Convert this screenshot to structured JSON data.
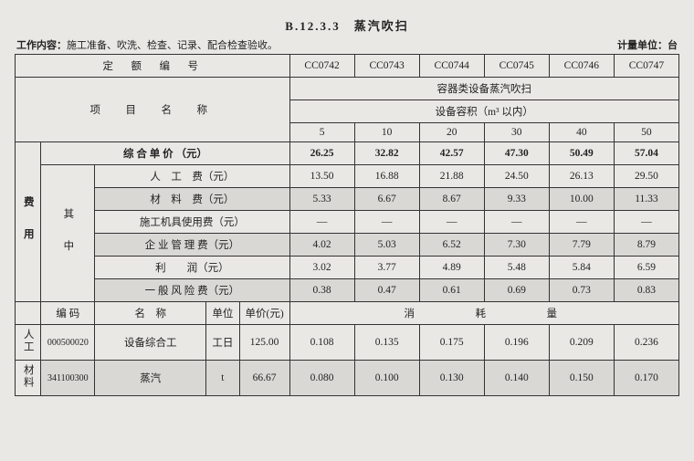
{
  "title": "B.12.3.3　蒸汽吹扫",
  "work_content_label": "工作内容：",
  "work_content": "施工准备、吹洗、检查、记录、配合检查验收。",
  "unit_label": "计量单位：台",
  "quota_label": "定　额　编　号",
  "item_label": "项　目　名　称",
  "group_title": "容器类设备蒸汽吹扫",
  "subgroup_title": "设备容积（m³ 以内）",
  "codes": [
    "CC0742",
    "CC0743",
    "CC0744",
    "CC0745",
    "CC0746",
    "CC0747"
  ],
  "caps": [
    "5",
    "10",
    "20",
    "30",
    "40",
    "50"
  ],
  "price_row_label": "综 合 单 价 （元）",
  "prices": [
    "26.25",
    "32.82",
    "42.57",
    "47.30",
    "50.49",
    "57.04"
  ],
  "fee_side": "费　用",
  "fee_sub": "其　中",
  "fee_rows": [
    {
      "label": "人　工　费（元）",
      "v": [
        "13.50",
        "16.88",
        "21.88",
        "24.50",
        "26.13",
        "29.50"
      ],
      "shade": false
    },
    {
      "label": "材　料　费（元）",
      "v": [
        "5.33",
        "6.67",
        "8.67",
        "9.33",
        "10.00",
        "11.33"
      ],
      "shade": true
    },
    {
      "label": "施工机具使用费（元）",
      "v": [
        "—",
        "—",
        "—",
        "—",
        "—",
        "—"
      ],
      "shade": false
    },
    {
      "label": "企 业 管 理 费（元）",
      "v": [
        "4.02",
        "5.03",
        "6.52",
        "7.30",
        "7.79",
        "8.79"
      ],
      "shade": true
    },
    {
      "label": "利　　润（元）",
      "v": [
        "3.02",
        "3.77",
        "4.89",
        "5.48",
        "5.84",
        "6.59"
      ],
      "shade": false
    },
    {
      "label": "一 般 风 险 费（元）",
      "v": [
        "0.38",
        "0.47",
        "0.61",
        "0.69",
        "0.73",
        "0.83"
      ],
      "shade": true
    }
  ],
  "cons_header": {
    "code": "编 码",
    "name": "名　称",
    "unit": "单位",
    "price": "单价(元)",
    "qty": "消　　　耗　　　量"
  },
  "cons_rows": [
    {
      "cat": "人工",
      "code": "000500020",
      "name": "设备综合工",
      "unit": "工日",
      "price": "125.00",
      "v": [
        "0.108",
        "0.135",
        "0.175",
        "0.196",
        "0.209",
        "0.236"
      ],
      "shade": false
    },
    {
      "cat": "材料",
      "code": "341100300",
      "name": "蒸汽",
      "unit": "t",
      "price": "66.67",
      "v": [
        "0.080",
        "0.100",
        "0.130",
        "0.140",
        "0.150",
        "0.170"
      ],
      "shade": true
    }
  ]
}
